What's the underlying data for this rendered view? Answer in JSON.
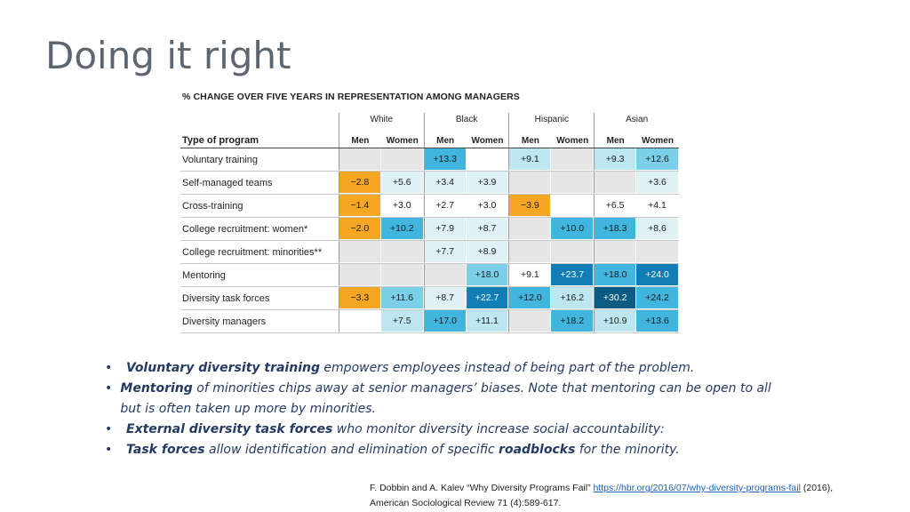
{
  "slide": {
    "title": "Doing it right"
  },
  "table": {
    "title": "% CHANGE OVER FIVE YEARS IN REPRESENTATION AMONG MANAGERS",
    "type_header": "Type of program",
    "groups": [
      "White",
      "Black",
      "Hispanic",
      "Asian"
    ],
    "subheaders": [
      "Men",
      "Women",
      "Men",
      "Women",
      "Men",
      "Women",
      "Men",
      "Women"
    ],
    "rows": [
      {
        "label": "Voluntary training",
        "values": [
          "",
          "",
          "+13.3",
          "",
          "+9.1",
          "",
          "+9.3",
          "+12.6"
        ],
        "colors": [
          "#e6e6e6",
          "#e6e6e6",
          "#40b5de",
          "#ffffff",
          "#bde6f0",
          "#e6e6e6",
          "#bde6f0",
          "#7ccfe8"
        ]
      },
      {
        "label": "Self-managed teams",
        "values": [
          "−2.8",
          "+5.6",
          "+3.4",
          "+3.9",
          "",
          "",
          "",
          "+3.6"
        ],
        "colors": [
          "#f5a623",
          "#dff1f5",
          "#dff1f5",
          "#dff1f5",
          "#e6e6e6",
          "#e6e6e6",
          "#e6e6e6",
          "#dff1f5"
        ]
      },
      {
        "label": "Cross-training",
        "values": [
          "−1.4",
          "+3.0",
          "+2.7",
          "+3.0",
          "−3.9",
          "",
          "+6.5",
          "+4.1"
        ],
        "colors": [
          "#f5a623",
          "#ffffff",
          "#ffffff",
          "#ffffff",
          "#f5a623",
          "#ffffff",
          "#ffffff",
          "#ffffff"
        ]
      },
      {
        "label": "College recruitment: women*",
        "values": [
          "−2.0",
          "+10.2",
          "+7.9",
          "+8.7",
          "",
          "+10.0",
          "+18.3",
          "+8.6"
        ],
        "colors": [
          "#f5a623",
          "#40b5de",
          "#dff1f5",
          "#dff1f5",
          "#e6e6e6",
          "#40b5de",
          "#40b5de",
          "#dff1f5"
        ]
      },
      {
        "label": "College recruitment: minorities**",
        "values": [
          "",
          "",
          "+7.7",
          "+8.9",
          "",
          "",
          "",
          ""
        ],
        "colors": [
          "#e6e6e6",
          "#e6e6e6",
          "#dff1f5",
          "#dff1f5",
          "#e6e6e6",
          "#e6e6e6",
          "#e6e6e6",
          "#e6e6e6"
        ]
      },
      {
        "label": "Mentoring",
        "values": [
          "",
          "",
          "",
          "+18.0",
          "+9.1",
          "+23.7",
          "+18.0",
          "+24.0"
        ],
        "colors": [
          "#e6e6e6",
          "#e6e6e6",
          "#e6e6e6",
          "#7ccfe8",
          "#ffffff",
          "#127eb5",
          "#40b5de",
          "#127eb5"
        ]
      },
      {
        "label": "Diversity task forces",
        "values": [
          "−3.3",
          "+11.6",
          "+8.7",
          "+22.7",
          "+12.0",
          "+16.2",
          "+30.2",
          "+24.2"
        ],
        "colors": [
          "#f5a623",
          "#7ccfe8",
          "#dff1f5",
          "#127eb5",
          "#40b5de",
          "#bde6f0",
          "#0b5b82",
          "#40b5de"
        ]
      },
      {
        "label": "Diversity managers",
        "values": [
          "",
          "+7.5",
          "+17.0",
          "+11.1",
          "",
          "+18.2",
          "+10.9",
          "+13.6"
        ],
        "colors": [
          "#ffffff",
          "#bde6f0",
          "#40b5de",
          "#bde6f0",
          "#e6e6e6",
          "#40b5de",
          "#bde6f0",
          "#40b5de"
        ]
      }
    ]
  },
  "bullets": [
    {
      "bold": "Voluntary diversity training",
      "text": " empowers employees instead of being part of the problem."
    },
    {
      "bold": "Mentoring",
      "text": " of minorities chips away at senior managers’ biases. Note that mentoring can be open to all but is often taken up more by minorities."
    },
    {
      "bold": "External diversity task forces",
      "text": " who monitor diversity increase social accountability:"
    },
    {
      "bold": "Task forces",
      "text": " allow identification and elimination of specific ",
      "bold2": "roadblocks",
      "text2": " for the minority."
    }
  ],
  "citation": {
    "prefix": "F. Dobbin and A. Kalev “Why Diversity Programs Fail” ",
    "link": "https://hbr.org/2016/07/why-diversity-programs-fail",
    "suffix": " (2016),",
    "line2": "American Sociological Review 71 (4):589-617."
  }
}
